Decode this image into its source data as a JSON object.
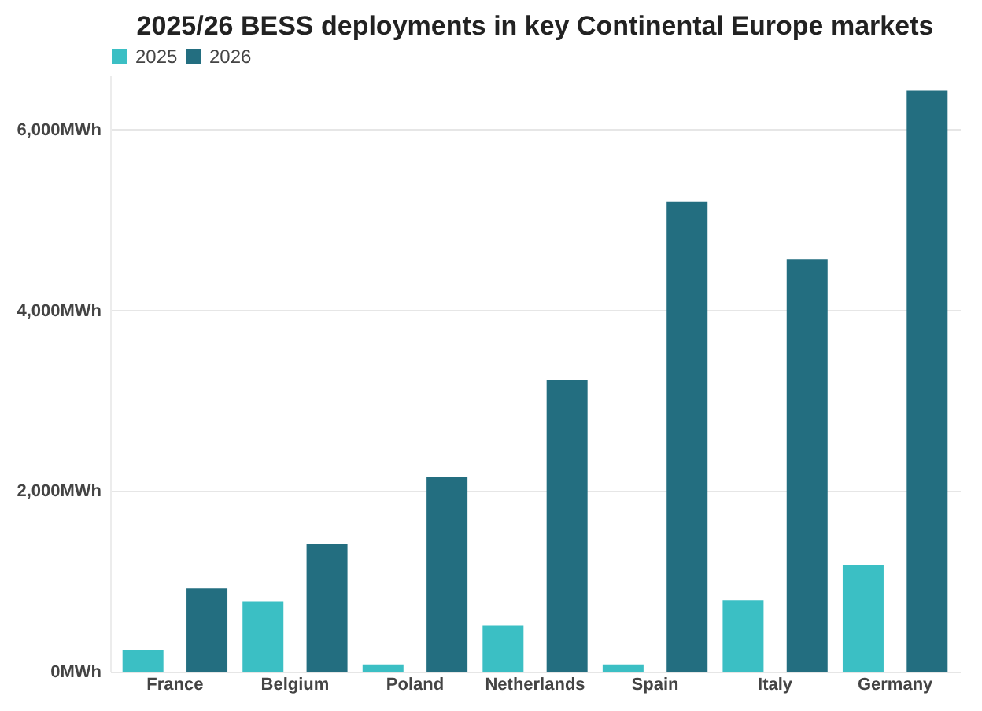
{
  "chart_data": {
    "type": "bar",
    "title": "2025/26 BESS deployments in key Continental Europe markets",
    "categories": [
      "France",
      "Belgium",
      "Poland",
      "Netherlands",
      "Spain",
      "Italy",
      "Germany"
    ],
    "series": [
      {
        "name": "2025",
        "color": "#3bbfc4",
        "values": [
          240,
          780,
          80,
          510,
          80,
          790,
          1180
        ]
      },
      {
        "name": "2026",
        "color": "#236e80",
        "values": [
          920,
          1410,
          2160,
          3230,
          5200,
          4570,
          6430
        ]
      }
    ],
    "ylim": [
      0,
      6600
    ],
    "yticks": [
      {
        "value": 0,
        "label": "0MWh"
      },
      {
        "value": 2000,
        "label": "2,000MWh"
      },
      {
        "value": 4000,
        "label": "4,000MWh"
      },
      {
        "value": 6000,
        "label": "6,000MWh"
      }
    ],
    "grid": "y",
    "legend": "top left"
  }
}
